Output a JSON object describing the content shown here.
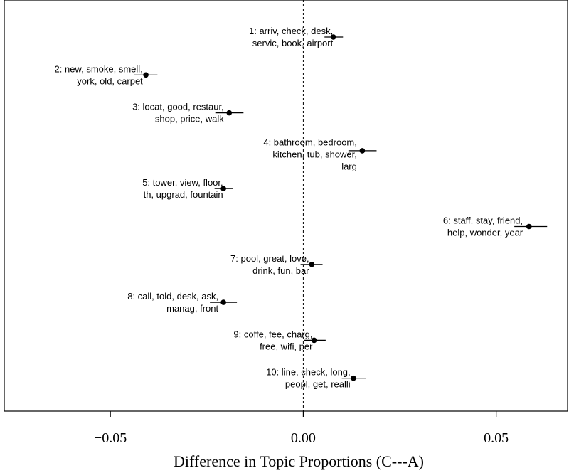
{
  "chart_data": {
    "type": "scatter",
    "subtype": "point-estimate-with-confidence-interval",
    "title": "",
    "xlabel": "Difference in Topic Proportions (C---A)",
    "ylabel": "",
    "xlim": [
      -0.0775,
      0.0685
    ],
    "xticks": [
      -0.05,
      0.0,
      0.05
    ],
    "xtick_labels": [
      "−0.05",
      "0.00",
      "0.05"
    ],
    "reference_line": {
      "x": 0.0,
      "style": "dotted"
    },
    "grid": false,
    "legend": "none",
    "colors": {
      "marker": "#000000",
      "line": "#000000",
      "frame": "#000000"
    },
    "topics": [
      {
        "id": 1,
        "label_lines": [
          "1: arriv, check, desk,",
          "servic, book, airport"
        ],
        "estimate": 0.0078,
        "ci": [
          0.0055,
          0.0103
        ]
      },
      {
        "id": 2,
        "label_lines": [
          "2: new, smoke, smell,",
          "york, old, carpet"
        ],
        "estimate": -0.0408,
        "ci": [
          -0.0438,
          -0.0378
        ]
      },
      {
        "id": 3,
        "label_lines": [
          "3: locat, good, restaur,",
          "shop, price, walk"
        ],
        "estimate": -0.0192,
        "ci": [
          -0.0228,
          -0.0155
        ]
      },
      {
        "id": 4,
        "label_lines": [
          "4: bathroom, bedroom,",
          "kitchen, tub, shower,",
          "larg"
        ],
        "estimate": 0.0153,
        "ci": [
          0.0117,
          0.019
        ]
      },
      {
        "id": 5,
        "label_lines": [
          "5: tower, view, floor,",
          "th, upgrad, fountain"
        ],
        "estimate": -0.0207,
        "ci": [
          -0.023,
          -0.0182
        ]
      },
      {
        "id": 6,
        "label_lines": [
          "6: staff, stay, friend,",
          "help, wonder, year"
        ],
        "estimate": 0.0585,
        "ci": [
          0.0547,
          0.0632
        ]
      },
      {
        "id": 7,
        "label_lines": [
          "7: pool, great, love,",
          "drink, fun, bar"
        ],
        "estimate": 0.0022,
        "ci": [
          -0.0007,
          0.005
        ]
      },
      {
        "id": 8,
        "label_lines": [
          "8: call, told, desk, ask,",
          "manag, front"
        ],
        "estimate": -0.0207,
        "ci": [
          -0.0242,
          -0.0172
        ]
      },
      {
        "id": 9,
        "label_lines": [
          "9: coffe, fee, charg,",
          "free, wifi, per"
        ],
        "estimate": 0.0028,
        "ci": [
          0.0002,
          0.0058
        ]
      },
      {
        "id": 10,
        "label_lines": [
          "10: line, check, long,",
          "peopl, get, realli"
        ],
        "estimate": 0.013,
        "ci": [
          0.01,
          0.0162
        ]
      }
    ]
  }
}
